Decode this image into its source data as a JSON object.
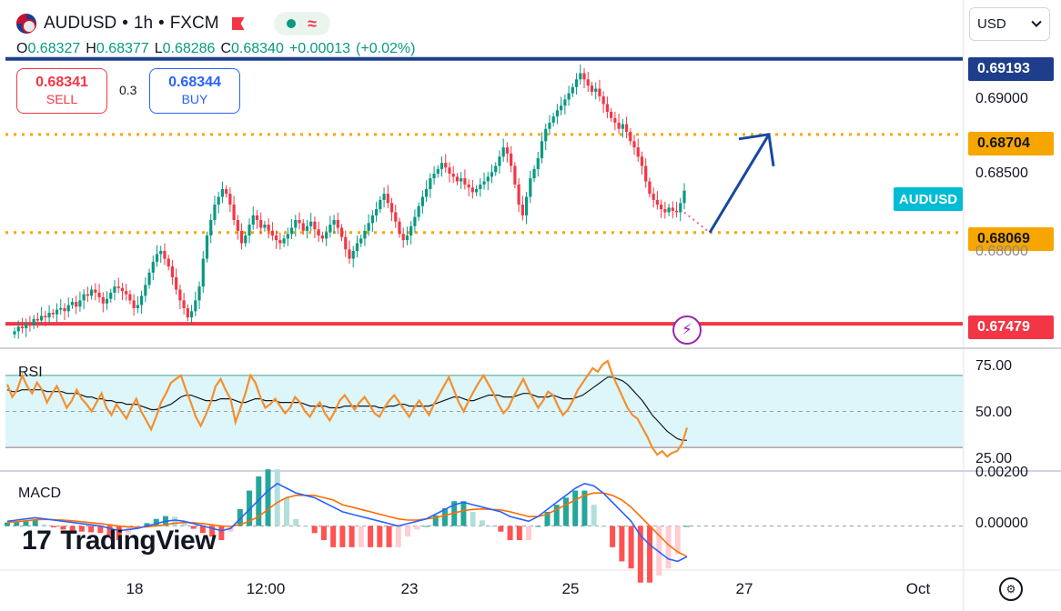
{
  "header": {
    "symbol": "AUDUSD",
    "sep1": "•",
    "interval": "1h",
    "sep2": "•",
    "exchange": "FXCM",
    "wave_glyph": "≈"
  },
  "ohlc": {
    "o_label": "O",
    "o": "0.68327",
    "h_label": "H",
    "h": "0.68377",
    "l_label": "L",
    "l": "0.68286",
    "c_label": "C",
    "c": "0.68340",
    "change": "+0.00013",
    "change_pct": "(+0.02%)"
  },
  "trade": {
    "sell_price": "0.68341",
    "sell_label": "SELL",
    "spread": "0.3",
    "buy_price": "0.68344",
    "buy_label": "BUY"
  },
  "currency_select": "USD",
  "colors": {
    "up": "#089981",
    "down": "#f23645",
    "blue_line": "#1e3e8c",
    "orange": "#f7a600",
    "red_line": "#f23645",
    "rsi": "#f58f2e",
    "macd": "#2962ff",
    "signal": "#ff6d00",
    "arrow": "#1848a0",
    "symbol_badge": "#00bcd4"
  },
  "chart_data": [
    {
      "type": "candlestick",
      "title": "AUDUSD • 1h • FXCM",
      "ylim": [
        0.6735,
        0.6925
      ],
      "ytick_labels": [
        "0.69000",
        "0.68500",
        "0.68000"
      ],
      "xtick_labels": [
        "18",
        "12:00",
        "23",
        "25",
        "27",
        "Oct"
      ],
      "symbol_badge": "AUDUSD",
      "levels": [
        {
          "price": 0.69193,
          "label": "0.69193",
          "style": "solid",
          "color": "#1e3e8c"
        },
        {
          "price": 0.68704,
          "label": "0.68704",
          "style": "dotted",
          "color": "#f7a600"
        },
        {
          "price": 0.68069,
          "label": "0.68069",
          "style": "dotted",
          "color": "#f7a600"
        },
        {
          "price": 0.67479,
          "label": "0.67479",
          "style": "solid",
          "color": "#f23645"
        }
      ],
      "close_path": [
        0.6743,
        0.6746,
        0.6745,
        0.6748,
        0.6747,
        0.6751,
        0.675,
        0.6753,
        0.6752,
        0.6755,
        0.6754,
        0.6757,
        0.6758,
        0.6756,
        0.676,
        0.6762,
        0.6759,
        0.6763,
        0.6767,
        0.6766,
        0.677,
        0.6768,
        0.6765,
        0.6761,
        0.6764,
        0.6768,
        0.6772,
        0.6771,
        0.6769,
        0.6767,
        0.6763,
        0.6758,
        0.676,
        0.6766,
        0.6773,
        0.6781,
        0.6788,
        0.6793,
        0.6795,
        0.679,
        0.6785,
        0.6778,
        0.677,
        0.6763,
        0.6758,
        0.6752,
        0.6756,
        0.6763,
        0.6772,
        0.679,
        0.6805,
        0.6815,
        0.6825,
        0.683,
        0.6835,
        0.6832,
        0.6825,
        0.6815,
        0.6808,
        0.68,
        0.6805,
        0.6812,
        0.6818,
        0.6815,
        0.681,
        0.6812,
        0.6808,
        0.6805,
        0.6802,
        0.68,
        0.6803,
        0.6806,
        0.681,
        0.6815,
        0.6813,
        0.6808,
        0.6811,
        0.6814,
        0.6809,
        0.6805,
        0.6803,
        0.6807,
        0.6812,
        0.6815,
        0.681,
        0.6804,
        0.6796,
        0.679,
        0.6795,
        0.68,
        0.6803,
        0.6808,
        0.6813,
        0.6818,
        0.6822,
        0.6828,
        0.6832,
        0.6826,
        0.682,
        0.6814,
        0.6806,
        0.6802,
        0.6805,
        0.6811,
        0.6817,
        0.6824,
        0.683,
        0.6835,
        0.6842,
        0.6845,
        0.6848,
        0.6852,
        0.6849,
        0.6845,
        0.6843,
        0.684,
        0.6842,
        0.6838,
        0.6836,
        0.6833,
        0.6835,
        0.6838,
        0.684,
        0.6843,
        0.6846,
        0.685,
        0.6856,
        0.6862,
        0.6858,
        0.685,
        0.6838,
        0.6825,
        0.6818,
        0.683,
        0.6842,
        0.6848,
        0.6855,
        0.6866,
        0.6874,
        0.6878,
        0.6882,
        0.6886,
        0.6889,
        0.6893,
        0.6897,
        0.6901,
        0.6906,
        0.691,
        0.6906,
        0.6902,
        0.6898,
        0.69,
        0.6895,
        0.689,
        0.6885,
        0.6881,
        0.6878,
        0.6874,
        0.6877,
        0.6872,
        0.6866,
        0.6862,
        0.6856,
        0.685,
        0.684,
        0.6832,
        0.6828,
        0.6825,
        0.6822,
        0.682,
        0.6823,
        0.6821,
        0.682,
        0.6826,
        0.6834
      ],
      "projection": {
        "from": 0.682,
        "pivot": 0.68069,
        "target": 0.68704
      }
    },
    {
      "type": "line",
      "title": "RSI",
      "ylim": [
        20,
        80
      ],
      "ytick_labels": [
        "75.00",
        "50.00",
        "25.00"
      ],
      "band": [
        30,
        70
      ],
      "series": [
        {
          "values": [
            65,
            58,
            62,
            70,
            64,
            60,
            66,
            62,
            55,
            60,
            64,
            58,
            52,
            56,
            62,
            57,
            54,
            50,
            55,
            60,
            52,
            48,
            54,
            50,
            46,
            52,
            57,
            50,
            45,
            40,
            47,
            55,
            60,
            66,
            68,
            70,
            62,
            55,
            47,
            42,
            48,
            55,
            64,
            68,
            62,
            57,
            44,
            52,
            60,
            70,
            66,
            58,
            52,
            54,
            57,
            53,
            49,
            52,
            58,
            55,
            50,
            47,
            52,
            55,
            49,
            45,
            50,
            56,
            59,
            55,
            51,
            55,
            58,
            54,
            49,
            47,
            52,
            56,
            59,
            55,
            51,
            47,
            52,
            56,
            52,
            48,
            54,
            59,
            64,
            69,
            62,
            55,
            50,
            56,
            61,
            66,
            70,
            65,
            60,
            54,
            49,
            52,
            58,
            63,
            68,
            62,
            57,
            52,
            56,
            61,
            59,
            53,
            48,
            51,
            56,
            62,
            66,
            70,
            74,
            72,
            76,
            78,
            70,
            64,
            58,
            52,
            48,
            46,
            41,
            36,
            30,
            26,
            28,
            25,
            27,
            28,
            32,
            41
          ]
        },
        {
          "values": [
            62,
            61,
            61,
            62,
            62,
            62,
            62,
            62,
            61,
            61,
            61,
            61,
            60,
            60,
            60,
            59,
            58,
            58,
            57,
            57,
            56,
            56,
            55,
            55,
            54,
            54,
            54,
            53,
            52,
            51,
            51,
            52,
            53,
            54,
            56,
            58,
            59,
            59,
            58,
            57,
            56,
            56,
            56,
            57,
            57,
            57,
            56,
            55,
            55,
            56,
            57,
            57,
            56,
            56,
            56,
            55,
            55,
            55,
            55,
            55,
            54,
            53,
            53,
            53,
            53,
            52,
            52,
            52,
            53,
            53,
            53,
            53,
            53,
            53,
            53,
            52,
            52,
            53,
            53,
            54,
            54,
            53,
            53,
            53,
            53,
            53,
            54,
            55,
            56,
            57,
            58,
            58,
            57,
            56,
            56,
            57,
            58,
            59,
            59,
            59,
            58,
            58,
            58,
            59,
            60,
            60,
            59,
            58,
            58,
            58,
            59,
            58,
            57,
            57,
            57,
            58,
            59,
            61,
            63,
            65,
            67,
            69,
            69,
            68,
            67,
            65,
            62,
            59,
            56,
            52,
            48,
            45,
            42,
            39,
            37,
            35,
            34,
            34
          ]
        }
      ]
    },
    {
      "type": "line",
      "title": "MACD",
      "ylim": [
        -0.0016,
        0.0021
      ],
      "ytick_labels": [
        "0.00200",
        "0.00000"
      ],
      "series": [
        {
          "values": [
            0.0002,
            0.00025,
            0.0003,
            0.00035,
            0.0003,
            0.00025,
            0.0002,
            0.00015,
            0.0001,
            5e-05,
            0.0,
            -0.0001,
            -0.0002,
            -0.00015,
            -0.0001,
            0.0,
            0.0001,
            0.0002,
            0.00025,
            0.0002,
            0.0001,
            0.0,
            -0.0001,
            -0.0002,
            -0.0001,
            0.0003,
            0.0007,
            0.0011,
            0.0015,
            0.0018,
            0.0016,
            0.0014,
            0.0013,
            0.0012,
            0.001,
            0.0008,
            0.0006,
            0.0005,
            0.0004,
            0.0003,
            0.0002,
            0.0001,
            0.0,
            0.0001,
            0.0002,
            0.0003,
            0.0005,
            0.0007,
            0.0009,
            0.001,
            0.0009,
            0.0008,
            0.0007,
            0.0006,
            0.0004,
            0.0003,
            0.0002,
            0.0004,
            0.0007,
            0.001,
            0.0013,
            0.0016,
            0.0018,
            0.0017,
            0.0014,
            0.001,
            0.0006,
            0.0002,
            -0.0004,
            -0.0008,
            -0.0011,
            -0.0014,
            -0.0015,
            -0.0013
          ]
        },
        {
          "values": [
            0.00015,
            0.00018,
            0.00022,
            0.00026,
            0.00028,
            0.00027,
            0.00025,
            0.00022,
            0.00018,
            0.00014,
            0.0001,
            5e-05,
            0.0,
            -4e-05,
            -6e-05,
            -4e-05,
            0.0,
            6e-05,
            0.00012,
            0.00015,
            0.00014,
            0.0001,
            5e-05,
            0.0,
            -2e-05,
            6e-05,
            0.0002,
            0.0004,
            0.0007,
            0.001,
            0.0012,
            0.0013,
            0.0013,
            0.0013,
            0.0012,
            0.0011,
            0.0009,
            0.0008,
            0.0007,
            0.0006,
            0.0005,
            0.0004,
            0.0003,
            0.00025,
            0.00025,
            0.0003,
            0.00035,
            0.00045,
            0.00055,
            0.00065,
            0.0007,
            0.00072,
            0.0007,
            0.00068,
            0.0006,
            0.0005,
            0.0004,
            0.0004,
            0.0005,
            0.0007,
            0.0009,
            0.0011,
            0.0013,
            0.0014,
            0.0014,
            0.0013,
            0.0011,
            0.0008,
            0.0004,
            0.0,
            -0.0004,
            -0.0008,
            -0.0011,
            -0.0013
          ]
        }
      ]
    }
  ],
  "branding": {
    "logo_mark": "17",
    "logo_text": "TradingView"
  }
}
